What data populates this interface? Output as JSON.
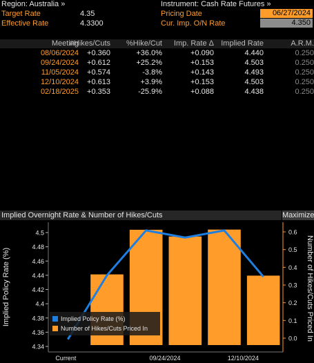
{
  "header": {
    "region_label": "Region: Australia »",
    "instrument_label": "Instrument: Cash Rate Futures »",
    "target_rate_label": "Target Rate",
    "target_rate_value": "4.35",
    "effective_rate_label": "Effective Rate",
    "effective_rate_value": "4.3300",
    "pricing_date_label": "Pricing Date",
    "pricing_date_value": "06/27/2024",
    "cur_imp_label": "Cur. Imp. O/N Rate",
    "cur_imp_value": "4.350"
  },
  "table": {
    "columns": [
      "Meeting",
      "#Hikes/Cuts",
      "%Hike/Cut",
      "Imp. Rate Δ",
      "Implied Rate",
      "A.R.M."
    ],
    "rows": [
      {
        "meeting": "08/06/2024",
        "hikes": "+0.360",
        "pct": "+36.0%",
        "delta": "+0.090",
        "implied": "4.440",
        "arm": "0.250"
      },
      {
        "meeting": "09/24/2024",
        "hikes": "+0.612",
        "pct": "+25.2%",
        "delta": "+0.153",
        "implied": "4.503",
        "arm": "0.250"
      },
      {
        "meeting": "11/05/2024",
        "hikes": "+0.574",
        "pct": "-3.8%",
        "delta": "+0.143",
        "implied": "4.493",
        "arm": "0.250"
      },
      {
        "meeting": "12/10/2024",
        "hikes": "+0.613",
        "pct": "+3.9%",
        "delta": "+0.153",
        "implied": "4.503",
        "arm": "0.250"
      },
      {
        "meeting": "02/18/2025",
        "hikes": "+0.353",
        "pct": "-25.9%",
        "delta": "+0.088",
        "implied": "4.438",
        "arm": "0.250"
      }
    ]
  },
  "chart_panel": {
    "title": "Implied Overnight Rate & Number of Hikes/Cuts",
    "maximize_label": "Maximize"
  },
  "chart_data": {
    "type": "bar",
    "categories": [
      "Current",
      "08/06/2024",
      "09/24/2024",
      "11/05/2024",
      "12/10/2024",
      "02/18/2025"
    ],
    "x_tick_labels": [
      "Current",
      "09/24/2024",
      "12/10/2024"
    ],
    "series": [
      {
        "name": "Implied Policy Rate (%)",
        "type": "line",
        "axis": "left",
        "color": "#1e7fe0",
        "values": [
          4.35,
          4.44,
          4.503,
          4.493,
          4.503,
          4.438
        ]
      },
      {
        "name": "Number of Hikes/Cuts Priced In",
        "type": "bar",
        "axis": "right",
        "color": "#ff9c2a",
        "values": [
          null,
          0.36,
          0.612,
          0.574,
          0.613,
          0.353
        ]
      }
    ],
    "ylabel": "Implied Policy Rate (%)",
    "y2label": "Number of Hikes/Cuts Priced In",
    "ylim": [
      4.34,
      4.5
    ],
    "y_ticks": [
      "4.5",
      "4.48",
      "4.46",
      "4.44",
      "4.42",
      "4.4",
      "4.38",
      "4.36",
      "4.34"
    ],
    "y2lim": [
      0.0,
      0.6
    ],
    "y2_ticks": [
      "0.6",
      "0.5",
      "0.4",
      "0.3",
      "0.2",
      "0.1",
      "0.0"
    ],
    "legend_position": "bottom-left"
  },
  "colors": {
    "accent": "#ff9c2a",
    "line": "#1e7fe0",
    "positive": "#e6e6e6"
  }
}
